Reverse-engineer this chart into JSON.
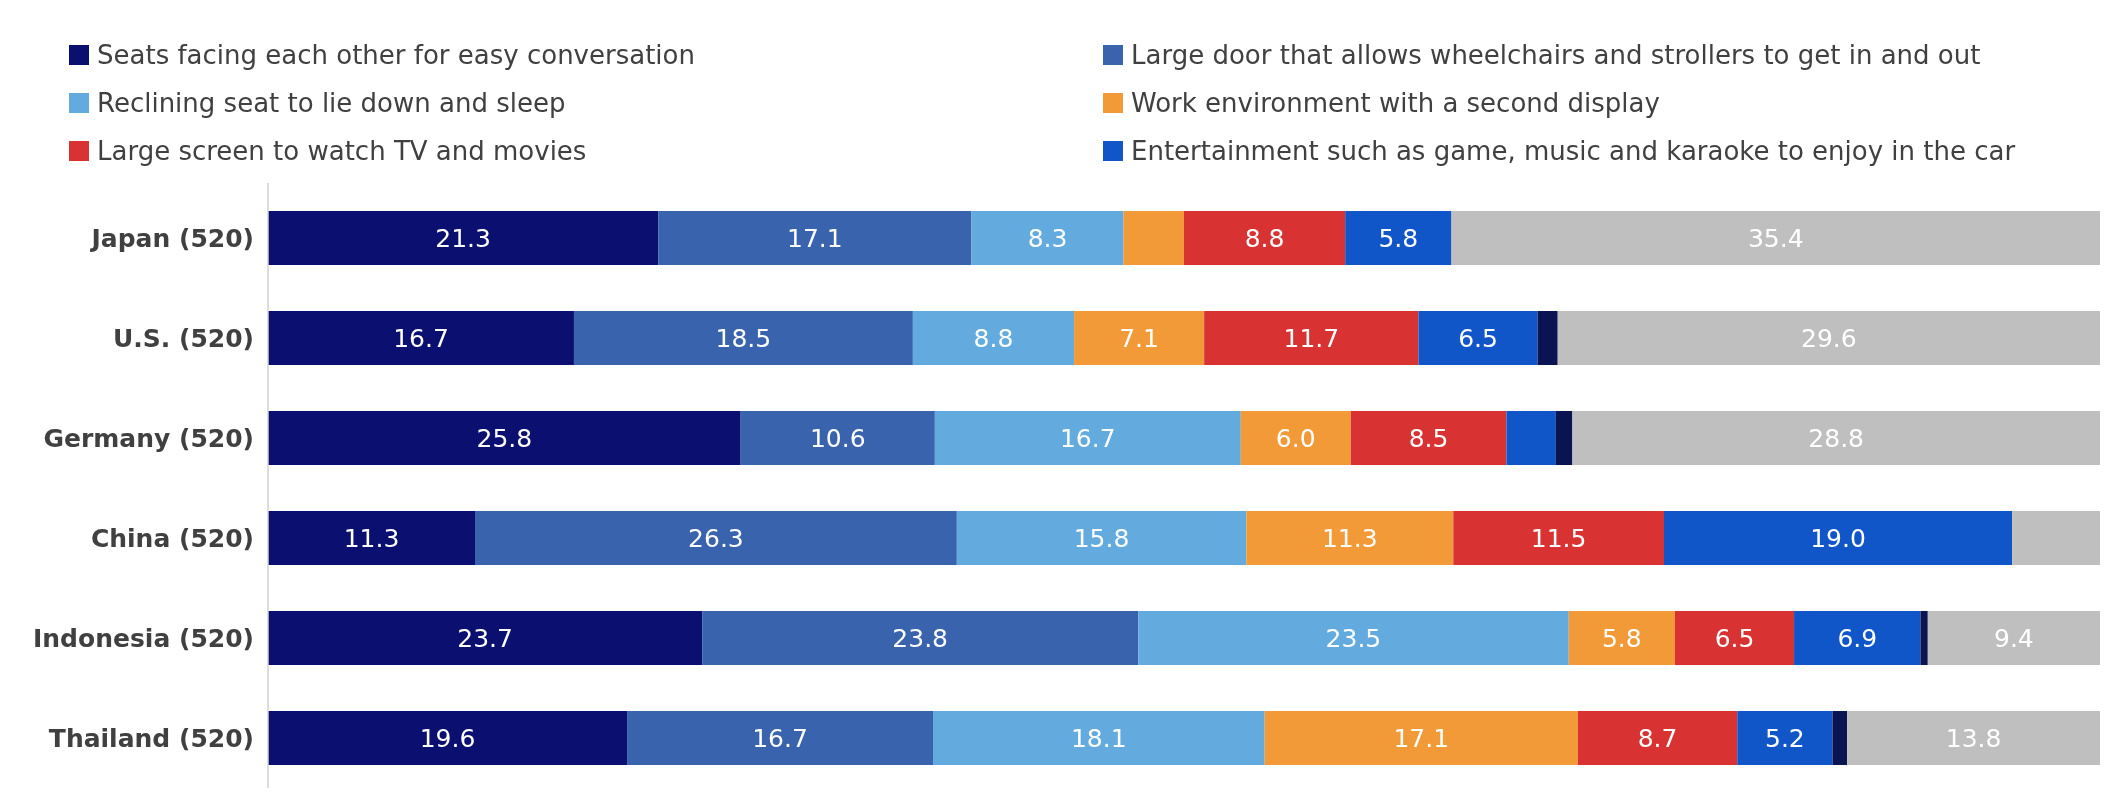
{
  "chart_data": {
    "type": "bar",
    "orientation": "horizontal",
    "stacked": true,
    "legend": "top",
    "categories": [
      "Japan (520)",
      "U.S. (520)",
      "Germany (520)",
      "China (520)",
      "Indonesia (520)",
      "Thailand (520)"
    ],
    "series": [
      {
        "name": "Seats facing each other for easy conversation",
        "color": "#0b1070",
        "values": [
          21.3,
          16.7,
          25.8,
          11.3,
          23.7,
          19.6
        ],
        "value_labels": [
          "21.3",
          "16.7",
          "25.8",
          "11.3",
          "23.7",
          "19.6"
        ]
      },
      {
        "name": "Large door that allows wheelchairs and strollers to get in and out",
        "color": "#3a63ae",
        "values": [
          17.1,
          18.5,
          10.6,
          26.3,
          23.8,
          16.7
        ],
        "value_labels": [
          "17.1",
          "18.5",
          "10.6",
          "26.3",
          "23.8",
          "16.7"
        ]
      },
      {
        "name": "Reclining seat to lie down and sleep",
        "color": "#63aadf",
        "values": [
          8.3,
          8.8,
          16.7,
          15.8,
          23.5,
          18.1
        ],
        "value_labels": [
          "8.3",
          "8.8",
          "16.7",
          "15.8",
          "23.5",
          "18.1"
        ]
      },
      {
        "name": "Work environment with a second display",
        "color": "#f39a38",
        "values": [
          3.3,
          7.1,
          6.0,
          11.3,
          5.8,
          17.1
        ],
        "value_labels": [
          null,
          "7.1",
          "6.0",
          "11.3",
          "5.8",
          "17.1"
        ]
      },
      {
        "name": "Large screen to watch TV and movies",
        "color": "#d83232",
        "values": [
          8.8,
          11.7,
          8.5,
          11.5,
          6.5,
          8.7
        ],
        "value_labels": [
          "8.8",
          "11.7",
          "8.5",
          "11.5",
          "6.5",
          "8.7"
        ]
      },
      {
        "name": "Entertainment such as game, music and karaoke to enjoy in the car",
        "color": "#1056c8",
        "values": [
          5.8,
          6.5,
          2.7,
          19.0,
          6.9,
          5.2
        ],
        "value_labels": [
          "5.8",
          "6.5",
          null,
          "19.0",
          "6.9",
          "5.2"
        ]
      },
      {
        "color": "#0a1450",
        "values": [
          0,
          1.1,
          0.9,
          0,
          0.4,
          0.8
        ],
        "value_labels": [
          null,
          null,
          null,
          null,
          null,
          null
        ]
      },
      {
        "color": "#bfbfbf",
        "values": [
          35.4,
          29.6,
          28.8,
          4.8,
          9.4,
          13.8
        ],
        "value_labels": [
          "35.4",
          "29.6",
          "28.8",
          null,
          "9.4",
          "13.8"
        ]
      }
    ]
  }
}
